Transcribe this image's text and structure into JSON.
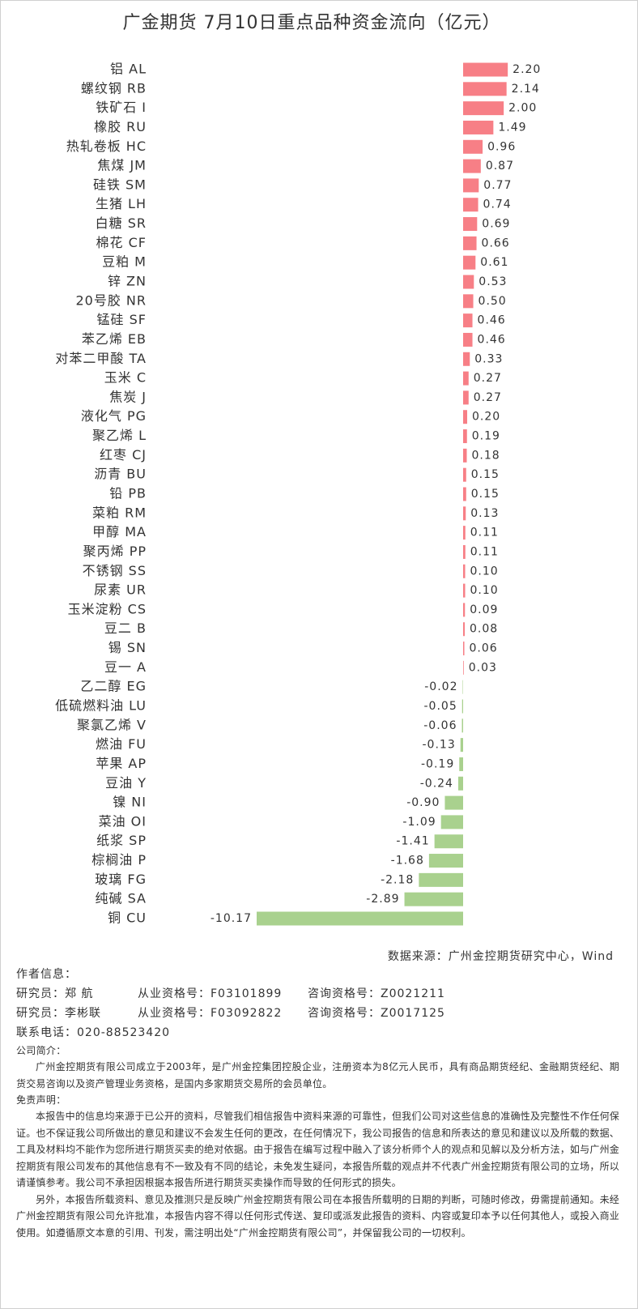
{
  "chart_data": {
    "type": "hbar",
    "title": "广金期货 7月10日重点品种资金流向（亿元）",
    "categories": [
      "铝 AL",
      "螺纹钢 RB",
      "铁矿石 I",
      "橡胶 RU",
      "热轧卷板 HC",
      "焦煤 JM",
      "硅铁 SM",
      "生猪 LH",
      "白糖 SR",
      "棉花 CF",
      "豆粕 M",
      "锌 ZN",
      "20号胶 NR",
      "锰硅 SF",
      "苯乙烯 EB",
      "对苯二甲酸 TA",
      "玉米 C",
      "焦炭 J",
      "液化气 PG",
      "聚乙烯 L",
      "红枣 CJ",
      "沥青 BU",
      "铅 PB",
      "菜粕 RM",
      "甲醇 MA",
      "聚丙烯 PP",
      "不锈钢 SS",
      "尿素 UR",
      "玉米淀粉 CS",
      "豆二 B",
      "锡 SN",
      "豆一 A",
      "乙二醇 EG",
      "低硫燃料油 LU",
      "聚氯乙烯 V",
      "燃油 FU",
      "苹果 AP",
      "豆油 Y",
      "镍 NI",
      "菜油 OI",
      "纸浆 SP",
      "棕榈油 P",
      "玻璃 FG",
      "纯碱 SA",
      "铜 CU"
    ],
    "values": [
      2.2,
      2.14,
      2,
      1.49,
      0.96,
      0.87,
      0.77,
      0.74,
      0.69,
      0.66,
      0.61,
      0.53,
      0.5,
      0.46,
      0.46,
      0.33,
      0.27,
      0.27,
      0.2,
      0.19,
      0.18,
      0.15,
      0.15,
      0.13,
      0.11,
      0.11,
      0.1,
      0.1,
      0.09,
      0.08,
      0.06,
      0.03,
      -0.02,
      -0.05,
      -0.06,
      -0.13,
      -0.19,
      -0.24,
      -0.9,
      -1.09,
      -1.41,
      -1.68,
      -2.18,
      -2.89,
      -10.17
    ],
    "value_labels": [
      "2.20",
      "2.14",
      "2.00",
      "1.49",
      "0.96",
      "0.87",
      "0.77",
      "0.74",
      "0.69",
      "0.66",
      "0.61",
      "0.53",
      "0.50",
      "0.46",
      "0.46",
      "0.33",
      "0.27",
      "0.27",
      "0.20",
      "0.19",
      "0.18",
      "0.15",
      "0.15",
      "0.13",
      "0.11",
      "0.11",
      "0.10",
      "0.10",
      "0.09",
      "0.08",
      "0.06",
      "0.03",
      "-0.02",
      "-0.05",
      "-0.06",
      "-0.13",
      "-0.19",
      "-0.24",
      "-0.90",
      "-1.09",
      "-1.41",
      "-1.68",
      "-2.18",
      "-2.89",
      "-10.17"
    ],
    "positive_color": "#f77f86",
    "negative_color": "#a9d18e",
    "source": "数据来源：广州金控期货研究中心，Wind"
  },
  "footer": {
    "author_heading": "作者信息：",
    "researchers": [
      [
        "研究员：郑 航",
        "从业资格号：F03101899",
        "咨询资格号：Z0021211"
      ],
      [
        "研究员：李彬联",
        "从业资格号：F03092822",
        "咨询资格号：Z0017125"
      ]
    ],
    "phone": "联系电话：020-88523420",
    "intro_heading": "公司简介：",
    "intro": "广州金控期货有限公司成立于2003年，是广州金控集团控股企业，注册资本为8亿元人民币，具有商品期货经纪、金融期货经纪、期货交易咨询以及资产管理业务资格，是国内多家期货交易所的会员单位。",
    "disclaimer_heading": "免责声明：",
    "disclaimer": [
      "本报告中的信息均来源于已公开的资料，尽管我们相信报告中资料来源的可靠性，但我们公司对这些信息的准确性及完整性不作任何保证。也不保证我公司所做出的意见和建议不会发生任何的更改，在任何情况下，我公司报告的信息和所表达的意见和建议以及所载的数据、工具及材料均不能作为您所进行期货买卖的绝对依据。由于报告在编写过程中融入了该分析师个人的观点和见解以及分析方法，如与广州金控期货有限公司发布的其他信息有不一致及有不同的结论，未免发生疑问，本报告所载的观点并不代表广州金控期货有限公司的立场，所以请谨慎参考。我公司不承担因根据本报告所进行期货买卖操作而导致的任何形式的损失。",
      "另外，本报告所载资料、意见及推测只是反映广州金控期货有限公司在本报告所载明的日期的判断，可随时修改，毋需提前通知。未经广州金控期货有限公司允许批准，本报告内容不得以任何形式传送、复印或派发此报告的资料、内容或复印本予以任何其他人，或投入商业使用。如遵循原文本意的引用、刊发，需注明出处“广州金控期货有限公司”，并保留我公司的一切权利。"
    ]
  }
}
